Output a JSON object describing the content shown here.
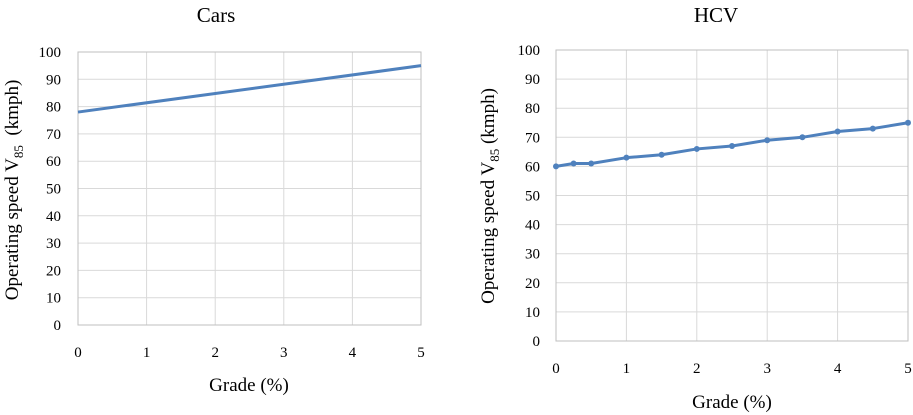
{
  "chart_data": [
    {
      "type": "line",
      "title": "Cars",
      "xlabel": "Grade (%)",
      "ylabel": {
        "main": "Operating speed V",
        "sub": "85",
        "unit": "  (kmph)"
      },
      "xlim": [
        0,
        5
      ],
      "ylim": [
        0,
        100
      ],
      "x_ticks": [
        "0",
        "1",
        "2",
        "3",
        "4",
        "5"
      ],
      "y_ticks": [
        "0",
        "10",
        "20",
        "30",
        "40",
        "50",
        "60",
        "70",
        "80",
        "90",
        "100"
      ],
      "grid": true,
      "markers": false,
      "color": "#4f81bd",
      "series": [
        {
          "x": [
            0,
            5
          ],
          "y": [
            78,
            95
          ]
        }
      ]
    },
    {
      "type": "line",
      "title": "HCV",
      "xlabel": "Grade (%)",
      "ylabel": {
        "main": "Operating speed V",
        "sub": "85",
        "unit": " (kmph)"
      },
      "xlim": [
        0,
        5
      ],
      "ylim": [
        0,
        100
      ],
      "x_ticks": [
        "0",
        "1",
        "2",
        "3",
        "4",
        "5"
      ],
      "y_ticks": [
        "0",
        "10",
        "20",
        "30",
        "40",
        "50",
        "60",
        "70",
        "80",
        "90",
        "100"
      ],
      "grid": true,
      "markers": true,
      "color": "#4f81bd",
      "series": [
        {
          "x": [
            0,
            0.25,
            0.5,
            1,
            1.5,
            2,
            2.5,
            3,
            3.5,
            4,
            4.5,
            5
          ],
          "y": [
            60,
            61,
            61,
            63,
            64,
            66,
            67,
            69,
            70,
            72,
            73,
            75
          ]
        }
      ]
    }
  ]
}
